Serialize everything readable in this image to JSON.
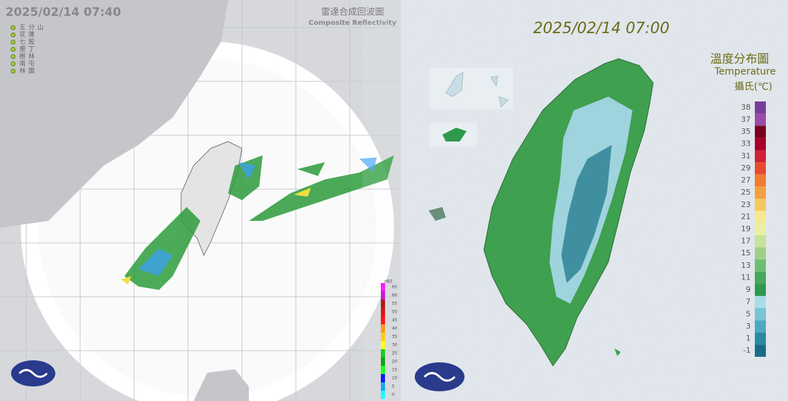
{
  "radar": {
    "timestamp": "2025/02/14 07:40",
    "title": "雷達合成回波圖",
    "subtitle": "Composite Reflectivity",
    "stations": [
      "五分山",
      "花蓮",
      "七股",
      "墾丁",
      "樹林",
      "南屯",
      "林園"
    ],
    "scale_unit": "dBZ",
    "scale_labels": [
      "65",
      "60",
      "55",
      "50",
      "45",
      "40",
      "35",
      "30",
      "25",
      "20",
      "15",
      "10",
      "5",
      "0"
    ]
  },
  "temperature": {
    "timestamp": "2025/02/14 07:00",
    "title": "溫度分布圖",
    "subtitle": "Temperature",
    "unit": "攝氏(℃)",
    "scale_labels": [
      "38",
      "37",
      "35",
      "33",
      "31",
      "29",
      "27",
      "25",
      "23",
      "21",
      "19",
      "17",
      "15",
      "13",
      "11",
      "9",
      "7",
      "5",
      "3",
      "1",
      "-1"
    ]
  }
}
